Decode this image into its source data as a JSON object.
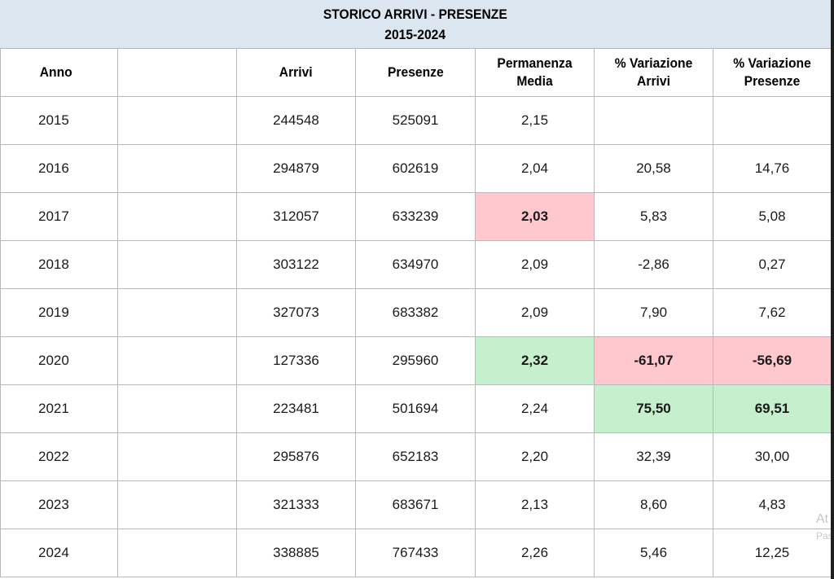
{
  "title": {
    "line1": "STORICO ARRIVI - PRESENZE",
    "line2": "2015-2024"
  },
  "headers": {
    "anno": "Anno",
    "blank": "",
    "arrivi": "Arrivi",
    "presenze": "Presenze",
    "permanenza": "Permanenza Media",
    "var_arrivi": "% Variazione Arrivi",
    "var_presenze": "% Variazione Presenze"
  },
  "rows": [
    {
      "anno": "2015",
      "arrivi": "244548",
      "presenze": "525091",
      "permanenza": "2,15",
      "var_arrivi": "",
      "var_presenze": ""
    },
    {
      "anno": "2016",
      "arrivi": "294879",
      "presenze": "602619",
      "permanenza": "2,04",
      "var_arrivi": "20,58",
      "var_presenze": "14,76"
    },
    {
      "anno": "2017",
      "arrivi": "312057",
      "presenze": "633239",
      "permanenza": "2,03",
      "var_arrivi": "5,83",
      "var_presenze": "5,08"
    },
    {
      "anno": "2018",
      "arrivi": "303122",
      "presenze": "634970",
      "permanenza": "2,09",
      "var_arrivi": "-2,86",
      "var_presenze": "0,27"
    },
    {
      "anno": "2019",
      "arrivi": "327073",
      "presenze": "683382",
      "permanenza": "2,09",
      "var_arrivi": "7,90",
      "var_presenze": "7,62"
    },
    {
      "anno": "2020",
      "arrivi": "127336",
      "presenze": "295960",
      "permanenza": "2,32",
      "var_arrivi": "-61,07",
      "var_presenze": "-56,69"
    },
    {
      "anno": "2021",
      "arrivi": "223481",
      "presenze": "501694",
      "permanenza": "2,24",
      "var_arrivi": "75,50",
      "var_presenze": "69,51"
    },
    {
      "anno": "2022",
      "arrivi": "295876",
      "presenze": "652183",
      "permanenza": "2,20",
      "var_arrivi": "32,39",
      "var_presenze": "30,00"
    },
    {
      "anno": "2023",
      "arrivi": "321333",
      "presenze": "683671",
      "permanenza": "2,13",
      "var_arrivi": "8,60",
      "var_presenze": "4,83"
    },
    {
      "anno": "2024",
      "arrivi": "338885",
      "presenze": "767433",
      "permanenza": "2,26",
      "var_arrivi": "5,46",
      "var_presenze": "12,25"
    }
  ],
  "highlights": {
    "negative_fill": "#ffc7ce",
    "negative_text": "#9c0006",
    "positive_fill": "#c6efce",
    "positive_text": "#006100"
  },
  "watermark": {
    "line1": "At",
    "line2": "Pas"
  }
}
